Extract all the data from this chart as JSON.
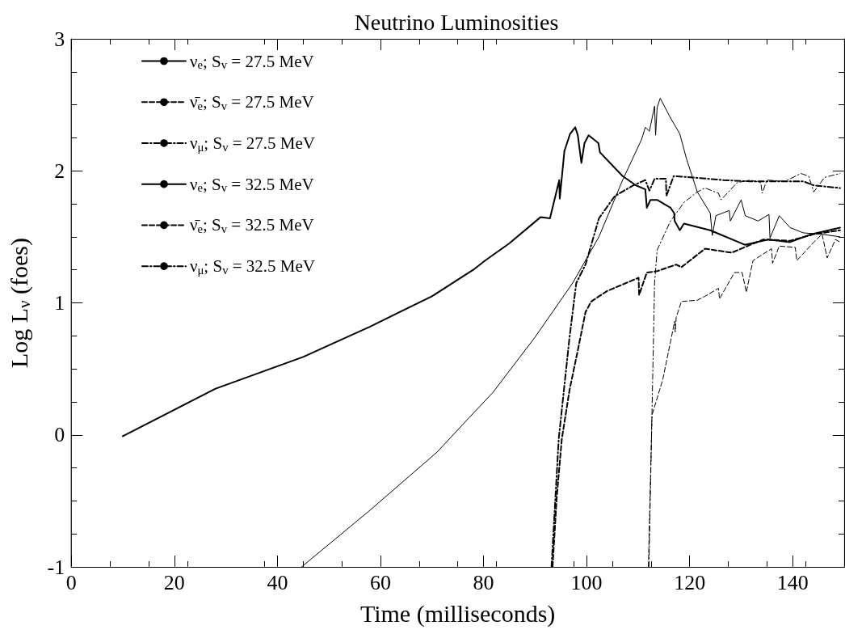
{
  "chart_data": {
    "type": "line",
    "title": "Neutrino Luminosities",
    "xlabel": "Time (milliseconds)",
    "ylabel": "Log L$_{ν}$ (foes)",
    "xlim": [
      0,
      150
    ],
    "xticks": [
      0,
      20,
      40,
      60,
      80,
      100,
      120,
      140
    ],
    "ylim": [
      -1,
      3
    ],
    "yticks": [
      -1,
      0,
      1,
      2,
      3
    ],
    "grid": false,
    "legend": "top left",
    "marker": "none",
    "series": [
      {
        "name": "ν$_{e}$; S$_{v}$ = 27.5 MeV",
        "color": "#000000",
        "line_style": "solid",
        "x": [
          44.7,
          58,
          71,
          77.2,
          81.8,
          90,
          97.3,
          102.4,
          107,
          110.7,
          111.4,
          112.2,
          113.2,
          113.4,
          113.7,
          114.3,
          116.3,
          118.1,
          119.4,
          121.5,
          124,
          124.4,
          125.1,
          127.7,
          127.9,
          130,
          130.8,
          133.3,
          135.4,
          135.6,
          137.4,
          139.5,
          142.1,
          145.6,
          149.2
        ],
        "values": [
          -1,
          -0.57,
          -0.13,
          0.13,
          0.32,
          0.74,
          1.15,
          1.5,
          1.93,
          2.24,
          2.33,
          2.3,
          2.49,
          2.27,
          2.48,
          2.55,
          2.4,
          2.28,
          2.09,
          1.84,
          1.68,
          1.51,
          1.66,
          1.7,
          1.62,
          1.78,
          1.66,
          1.62,
          1.67,
          1.49,
          1.66,
          1.57,
          1.53,
          1.52,
          1.5
        ]
      },
      {
        "name": "ν̄$_{e}$; S$_{v}$ = 27.5 MeV",
        "color": "#000000",
        "line_style": "dashed",
        "x": [
          112,
          112.7,
          114.8,
          117.1,
          117.2,
          117.4,
          118.4,
          121.5,
          123,
          125.6,
          125.8,
          128.7,
          130.2,
          131,
          132.3,
          135.9,
          136.1,
          137.4,
          140.5,
          140.8,
          144.1,
          145.7,
          146.7,
          148.3,
          149.2
        ],
        "values": [
          -1,
          0.15,
          0.42,
          0.86,
          0.78,
          0.89,
          1.01,
          1.02,
          1.05,
          1.11,
          1.03,
          1.23,
          1.23,
          1.08,
          1.32,
          1.41,
          1.3,
          1.43,
          1.42,
          1.32,
          1.46,
          1.52,
          1.34,
          1.48,
          1.46
        ]
      },
      {
        "name": "ν$_{μ}$; S$_{v}$ = 27.5 MeV",
        "color": "#000000",
        "line_style": "dashdot",
        "x": [
          112.1,
          112.7,
          113.2,
          113.7,
          116.3,
          118.9,
          121.5,
          123,
          125.6,
          126.1,
          129.2,
          131.7,
          133.8,
          134.1,
          135,
          138.5,
          141.6,
          143.1,
          144.1,
          146.2,
          149.2
        ],
        "values": [
          -1,
          0.17,
          1.15,
          1.4,
          1.62,
          1.76,
          1.84,
          1.87,
          1.83,
          1.78,
          1.91,
          1.93,
          1.91,
          1.83,
          1.93,
          1.92,
          1.98,
          1.96,
          1.84,
          1.95,
          1.98
        ]
      },
      {
        "name": "ν$_{e}$; S$_{v}$ = 32.5 MeV",
        "color": "#000000",
        "line_style": "solid",
        "x": [
          10,
          28,
          45,
          58,
          70,
          78,
          80.3,
          85,
          91.1,
          92.9,
          94.7,
          94.8,
          95.7,
          96.8,
          97.8,
          98.3,
          99,
          99.6,
          100.4,
          102.3,
          102.6,
          107,
          109.6,
          111.4,
          111.7,
          112.4,
          113.7,
          116.3,
          117,
          117.1,
          118.1,
          118.9,
          124,
          130.7,
          135.4,
          139.5,
          143.6,
          149.2
        ],
        "values": [
          -0.01,
          0.35,
          0.59,
          0.82,
          1.05,
          1.25,
          1.32,
          1.45,
          1.65,
          1.64,
          1.93,
          1.79,
          2.15,
          2.28,
          2.33,
          2.27,
          2.06,
          2.21,
          2.27,
          2.21,
          2.14,
          1.96,
          1.89,
          1.86,
          1.72,
          1.78,
          1.78,
          1.72,
          1.68,
          1.62,
          1.55,
          1.6,
          1.55,
          1.44,
          1.48,
          1.46,
          1.52,
          1.57
        ]
      },
      {
        "name": "ν̄$_{e}$; S$_{v}$ = 32.5 MeV",
        "color": "#000000",
        "line_style": "dashed",
        "x": [
          93.4,
          94.2,
          95.2,
          96.7,
          98.3,
          99.8,
          100.9,
          104,
          110.1,
          110.2,
          111.7,
          113.7,
          117.4,
          118.4,
          123,
          128.2,
          131.2,
          134.3,
          139.5,
          144.1,
          149.2
        ],
        "values": [
          -1,
          -0.48,
          -0.03,
          0.34,
          0.64,
          0.93,
          1.01,
          1.09,
          1.19,
          1.06,
          1.23,
          1.24,
          1.29,
          1.27,
          1.41,
          1.38,
          1.43,
          1.48,
          1.47,
          1.52,
          1.55
        ]
      },
      {
        "name": "ν$_{μ}$; S$_{v}$ = 32.5 MeV",
        "color": "#000000",
        "line_style": "dashdot",
        "x": [
          93.2,
          94.6,
          96.7,
          98,
          99.8,
          102.4,
          105.5,
          109.1,
          111.4,
          112.2,
          113.2,
          115.4,
          115.5,
          116.9,
          120.5,
          126.6,
          131.7,
          136.9,
          142.1,
          144.1,
          149.2
        ],
        "values": [
          -1,
          -0.03,
          0.74,
          1.15,
          1.29,
          1.64,
          1.81,
          1.89,
          1.93,
          1.85,
          1.94,
          1.94,
          1.81,
          1.96,
          1.95,
          1.93,
          1.92,
          1.92,
          1.92,
          1.89,
          1.87
        ]
      }
    ]
  }
}
